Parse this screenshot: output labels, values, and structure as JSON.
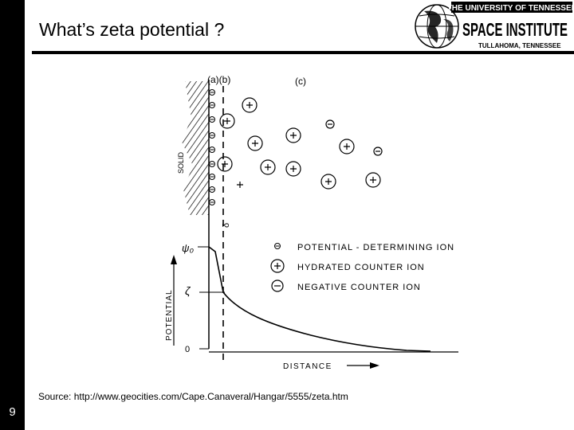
{
  "slide": {
    "title": "What’s zeta potential ?",
    "number": "9",
    "source": "Source: http://www.geocities.com/Cape.Canaveral/Hangar/5555/zeta.htm"
  },
  "logo": {
    "line1": "THE UNIVERSITY OF TENNESSEE",
    "line2": "SPACE INSTITUTE",
    "line3": "TULLAHOMA, TENNESSEE"
  },
  "diagram": {
    "label_a_b": "(a)(b)",
    "label_c": "(c)",
    "solid_label": "SOLID",
    "delta_label": "δ",
    "psi0_label": "ψ₀",
    "zeta_label": "ζ",
    "zero_label": "0",
    "y_axis_label": "POTENTIAL",
    "x_axis_label": "DISTANCE",
    "minus_sign": "−",
    "plus_sign": "+",
    "legend": [
      {
        "symbol": "small-minus",
        "text": "POTENTIAL - DETERMINING ION"
      },
      {
        "symbol": "circled-plus",
        "text": "HYDRATED COUNTER ION"
      },
      {
        "symbol": "circled-minus",
        "text": "NEGATIVE COUNTER ION"
      }
    ]
  }
}
